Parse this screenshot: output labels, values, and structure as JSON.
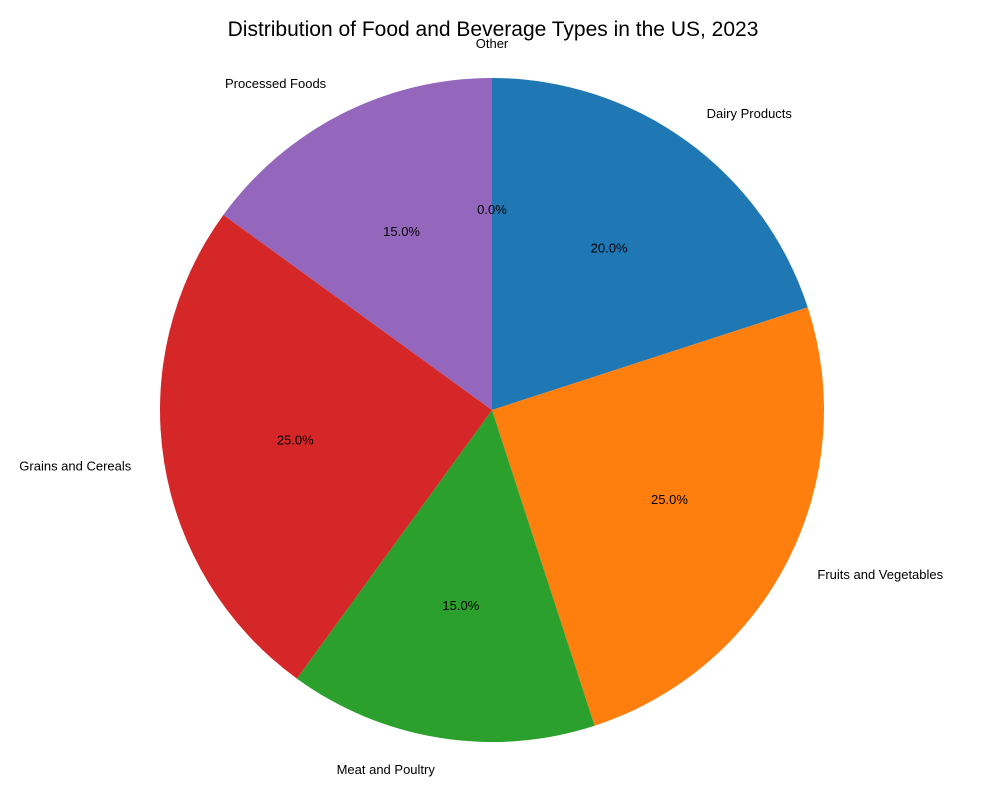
{
  "chart_data": {
    "type": "pie",
    "title": "Distribution of Food and Beverage Types in the US, 2023",
    "categories": [
      "Dairy Products",
      "Fruits and Vegetables",
      "Meat and Poultry",
      "Grains and Cereals",
      "Processed Foods",
      "Other"
    ],
    "values": [
      20,
      25,
      15,
      25,
      15,
      0
    ],
    "percent_labels": [
      "20.0%",
      "25.0%",
      "15.0%",
      "25.0%",
      "15.0%",
      "0.0%"
    ],
    "colors": [
      "#1f77b4",
      "#ff7f0e",
      "#2ca02c",
      "#d62728",
      "#9467bd",
      "#8c564b"
    ],
    "start_angle": "top",
    "direction": "clockwise",
    "legend": "none"
  }
}
